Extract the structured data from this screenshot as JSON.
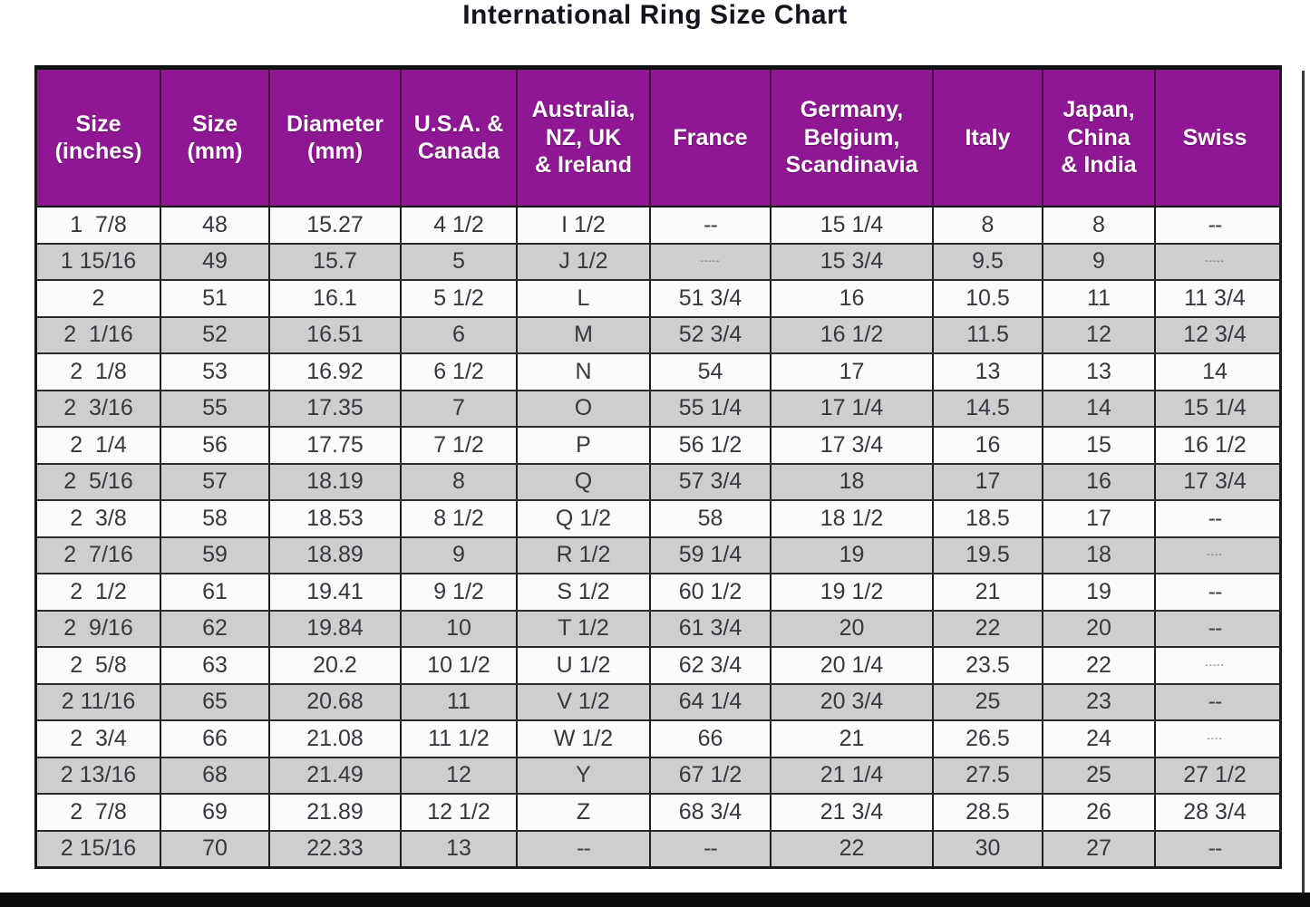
{
  "chart_data": {
    "type": "table",
    "title": "International Ring Size Chart",
    "columns": [
      "Size\n(inches)",
      "Size\n(mm)",
      "Diameter\n(mm)",
      "U.S.A. &\nCanada",
      "Australia,\nNZ, UK\n& Ireland",
      "France",
      "Germany,\nBelgium,\nScandinavia",
      "Italy",
      "Japan,\nChina\n& India",
      "Swiss"
    ],
    "rows": [
      [
        "1  7/8",
        "48",
        "15.27",
        "4 1/2",
        "I 1/2",
        "--",
        "15 1/4",
        "8",
        "8",
        "--"
      ],
      [
        "1 15/16",
        "49",
        "15.7",
        "5",
        "J 1/2",
        "-----",
        "15 3/4",
        "9.5",
        "9",
        "-----"
      ],
      [
        "2",
        "51",
        "16.1",
        "5 1/2",
        "L",
        "51 3/4",
        "16",
        "10.5",
        "11",
        "11 3/4"
      ],
      [
        "2  1/16",
        "52",
        "16.51",
        "6",
        "M",
        "52 3/4",
        "16 1/2",
        "11.5",
        "12",
        "12 3/4"
      ],
      [
        "2  1/8",
        "53",
        "16.92",
        "6 1/2",
        "N",
        "54",
        "17",
        "13",
        "13",
        "14"
      ],
      [
        "2  3/16",
        "55",
        "17.35",
        "7",
        "O",
        "55 1/4",
        "17 1/4",
        "14.5",
        "14",
        "15 1/4"
      ],
      [
        "2  1/4",
        "56",
        "17.75",
        "7 1/2",
        "P",
        "56 1/2",
        "17 3/4",
        "16",
        "15",
        "16 1/2"
      ],
      [
        "2  5/16",
        "57",
        "18.19",
        "8",
        "Q",
        "57 3/4",
        "18",
        "17",
        "16",
        "17 3/4"
      ],
      [
        "2  3/8",
        "58",
        "18.53",
        "8 1/2",
        "Q 1/2",
        "58",
        "18 1/2",
        "18.5",
        "17",
        "--"
      ],
      [
        "2  7/16",
        "59",
        "18.89",
        "9",
        "R 1/2",
        "59 1/4",
        "19",
        "19.5",
        "18",
        "----"
      ],
      [
        "2  1/2",
        "61",
        "19.41",
        "9 1/2",
        "S 1/2",
        "60 1/2",
        "19 1/2",
        "21",
        "19",
        "--"
      ],
      [
        "2  9/16",
        "62",
        "19.84",
        "10",
        "T 1/2",
        "61 3/4",
        "20",
        "22",
        "20",
        "--"
      ],
      [
        "2  5/8",
        "63",
        "20.2",
        "10 1/2",
        "U 1/2",
        "62 3/4",
        "20 1/4",
        "23.5",
        "22",
        "-----"
      ],
      [
        "2 11/16",
        "65",
        "20.68",
        "11",
        "V 1/2",
        "64 1/4",
        "20 3/4",
        "25",
        "23",
        "--"
      ],
      [
        "2  3/4",
        "66",
        "21.08",
        "11 1/2",
        "W 1/2",
        "66",
        "21",
        "26.5",
        "24",
        "----"
      ],
      [
        "2 13/16",
        "68",
        "21.49",
        "12",
        "Y",
        "67 1/2",
        "21 1/4",
        "27.5",
        "25",
        "27 1/2"
      ],
      [
        "2  7/8",
        "69",
        "21.89",
        "12 1/2",
        "Z",
        "68 3/4",
        "21 3/4",
        "28.5",
        "26",
        "28 3/4"
      ],
      [
        "2 15/16",
        "70",
        "22.33",
        "13",
        "--",
        "--",
        "22",
        "30",
        "27",
        "--"
      ]
    ]
  },
  "colors": {
    "header_bg": "#8F1794",
    "header_text": "#ffffff",
    "row_alt": "#cecece",
    "title_color": "#14141e"
  }
}
